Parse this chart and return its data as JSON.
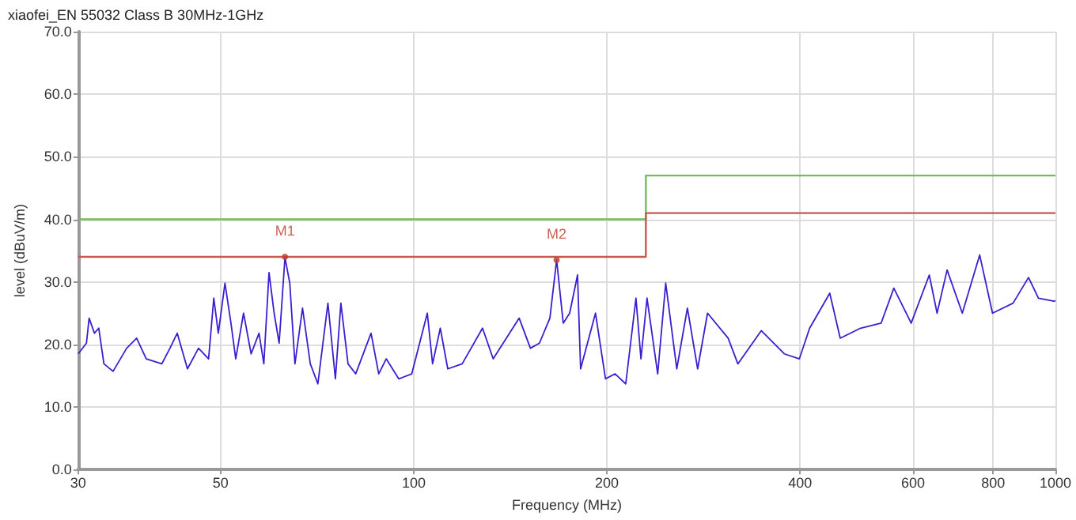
{
  "chart_data": {
    "type": "line",
    "title": "xiaofei_EN 55032 Class B 30MHz-1GHz",
    "xlabel": "Frequency (MHz)",
    "ylabel": "level (dBuV/m)",
    "log": "x",
    "grid": true,
    "marker": "none",
    "line_style": "solid",
    "xlim": [
      30,
      1000
    ],
    "xticks": [
      30,
      50,
      100,
      200,
      400,
      600,
      800,
      1000
    ],
    "ylim": [
      0,
      70
    ],
    "yticks": [
      {
        "value": 0,
        "label": "0.0"
      },
      {
        "value": 10,
        "label": "10.0"
      },
      {
        "value": 20,
        "label": "20.0"
      },
      {
        "value": 30,
        "label": "30.0"
      },
      {
        "value": 40,
        "label": "40.0"
      },
      {
        "value": 50,
        "label": "50.0"
      },
      {
        "value": 60,
        "label": "60.0"
      },
      {
        "value": 70,
        "label": "70.0"
      }
    ],
    "annotations": [
      {
        "text": "M1",
        "x": 63,
        "y": 34
      },
      {
        "text": "M2",
        "x": 167,
        "y": 33.5
      }
    ],
    "series": [
      {
        "color": "#3a1fd0",
        "x": [
          30,
          30.9,
          31.2,
          31.8,
          32.3,
          32.9,
          34,
          35.7,
          37,
          38.3,
          40.5,
          41.7,
          42.8,
          44.4,
          46.2,
          47.9,
          48.8,
          49.6,
          50.8,
          51.9,
          52.8,
          54.3,
          55.8,
          57.4,
          58.4,
          59.5,
          60.6,
          61.7,
          63,
          64.1,
          65.3,
          67.1,
          69,
          70.9,
          73.5,
          75.5,
          77,
          79,
          81.2,
          85.8,
          88.2,
          90.6,
          94.8,
          99.3,
          105,
          107,
          110,
          113,
          119,
          128,
          133,
          146,
          152,
          157,
          163,
          167,
          171,
          175,
          180,
          182,
          192,
          199,
          206,
          214,
          222,
          226,
          231,
          240,
          247,
          257,
          267,
          277,
          287,
          309,
          320,
          348,
          378,
          399,
          414,
          445,
          462,
          497,
          535,
          560,
          596,
          636,
          654,
          678,
          716,
          762,
          798,
          859,
          908,
          941,
          995,
          1000
        ],
        "values": [
          18.5,
          20.2,
          24.2,
          21.8,
          22.6,
          16.9,
          15.7,
          19.4,
          21,
          17.7,
          16.9,
          19.4,
          21.8,
          16.1,
          19.4,
          17.7,
          27.4,
          21.8,
          29.8,
          23.4,
          17.7,
          25,
          18.5,
          21.8,
          16.9,
          31.5,
          25,
          20.2,
          33.9,
          29.8,
          16.9,
          25.8,
          16.9,
          13.7,
          26.6,
          14.5,
          26.6,
          16.9,
          15.3,
          21.8,
          15.3,
          17.7,
          14.5,
          15.3,
          25,
          16.9,
          22.6,
          16.1,
          16.9,
          22.6,
          17.7,
          24.2,
          19.4,
          20.2,
          24.2,
          33.5,
          23.4,
          25,
          31.1,
          16.1,
          25,
          14.5,
          15.3,
          13.7,
          27.4,
          17.7,
          27.4,
          15.3,
          29.8,
          16.1,
          25.8,
          16.1,
          25,
          21,
          16.9,
          22.2,
          18.5,
          17.7,
          22.6,
          28.2,
          21,
          22.6,
          23.4,
          29,
          23.4,
          31.1,
          25,
          31.9,
          25,
          34.3,
          25,
          26.6,
          30.7,
          27.4,
          26.9,
          27
        ]
      },
      {
        "type": "step",
        "color": "#70c05a",
        "x": [
          30,
          230,
          1000
        ],
        "values": [
          40,
          47,
          47
        ]
      },
      {
        "type": "step",
        "color": "#c8574f",
        "x": [
          30,
          230,
          1000
        ],
        "values": [
          34,
          41,
          41
        ]
      }
    ]
  }
}
